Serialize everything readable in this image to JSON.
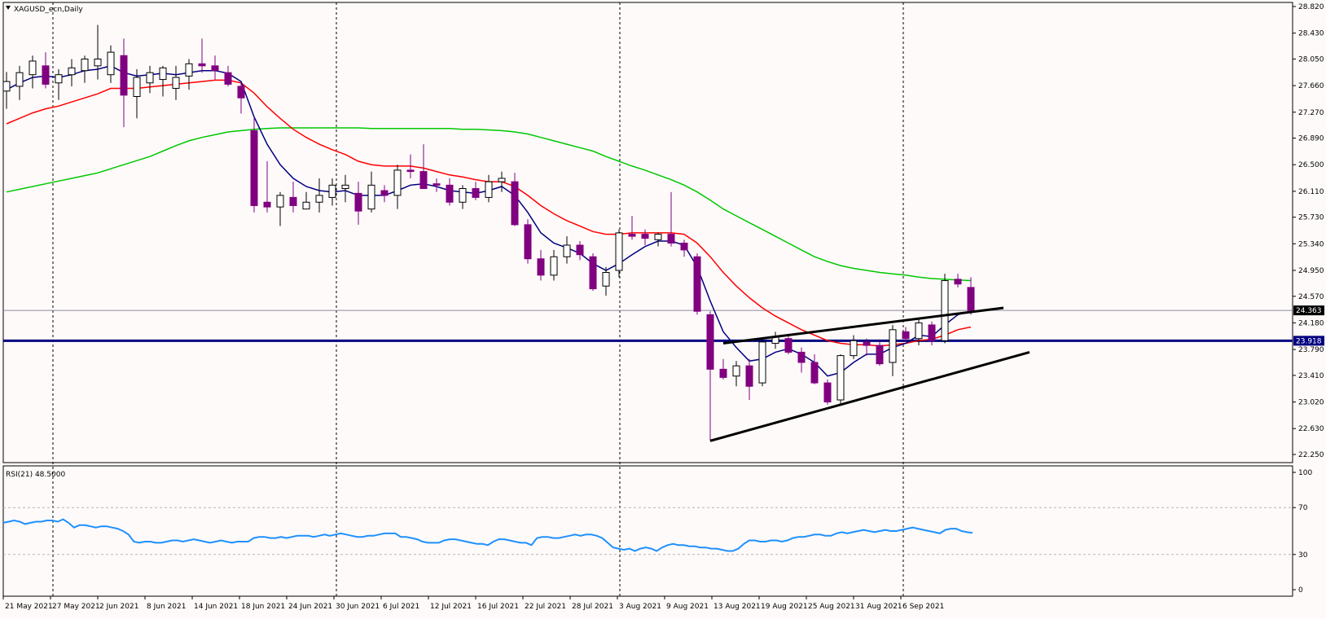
{
  "header": {
    "symbol_label": "XAGUSD_ecn,Daily"
  },
  "colors": {
    "background": "#fffafa",
    "bull_body": "#ffffff",
    "bear_body": "#800080",
    "candle_outline": "#000000",
    "ma_fast": "#000080",
    "ma_mid": "#ff0000",
    "ma_slow": "#00c800",
    "support_line": "#000080",
    "rsi_line": "#1e90ff",
    "trendline": "#000000",
    "price_tag_bg": "#000000",
    "price_tag_text": "#ffffff"
  },
  "chart_data": [
    {
      "type": "candlestick",
      "title": "XAGUSD_ecn,Daily",
      "y_ticks": [
        "28.820",
        "28.430",
        "28.050",
        "27.660",
        "27.270",
        "26.890",
        "26.500",
        "26.110",
        "25.730",
        "25.340",
        "24.950",
        "24.570",
        "24.180",
        "23.790",
        "23.410",
        "23.020",
        "22.630",
        "22.250"
      ],
      "ylim": [
        22.25,
        28.82
      ],
      "x_labels": [
        "21 May 2021",
        "27 May 2021",
        "2 Jun 2021",
        "8 Jun 2021",
        "14 Jun 2021",
        "18 Jun 2021",
        "24 Jun 2021",
        "30 Jun 2021",
        "6 Jul 2021",
        "12 Jul 2021",
        "16 Jul 2021",
        "22 Jul 2021",
        "28 Jul 2021",
        "3 Aug 2021",
        "9 Aug 2021",
        "13 Aug 2021",
        "19 Aug 2021",
        "25 Aug 2021",
        "31 Aug 2021",
        "6 Sep 2021"
      ],
      "candles": [
        {
          "o": 27.58,
          "h": 27.86,
          "l": 27.32,
          "c": 27.72
        },
        {
          "o": 27.65,
          "h": 27.95,
          "l": 27.45,
          "c": 27.85
        },
        {
          "o": 27.82,
          "h": 28.1,
          "l": 27.62,
          "c": 28.02
        },
        {
          "o": 27.95,
          "h": 28.15,
          "l": 27.62,
          "c": 27.68
        },
        {
          "o": 27.7,
          "h": 27.9,
          "l": 27.45,
          "c": 27.82
        },
        {
          "o": 27.82,
          "h": 28.05,
          "l": 27.65,
          "c": 27.92
        },
        {
          "o": 27.88,
          "h": 28.1,
          "l": 27.7,
          "c": 28.05
        },
        {
          "o": 27.95,
          "h": 28.55,
          "l": 27.75,
          "c": 28.05
        },
        {
          "o": 27.82,
          "h": 28.25,
          "l": 27.7,
          "c": 28.15
        },
        {
          "o": 28.1,
          "h": 28.35,
          "l": 27.05,
          "c": 27.52
        },
        {
          "o": 27.5,
          "h": 27.9,
          "l": 27.18,
          "c": 27.78
        },
        {
          "o": 27.7,
          "h": 27.95,
          "l": 27.55,
          "c": 27.85
        },
        {
          "o": 27.75,
          "h": 27.95,
          "l": 27.5,
          "c": 27.92
        },
        {
          "o": 27.62,
          "h": 27.95,
          "l": 27.45,
          "c": 27.78
        },
        {
          "o": 27.8,
          "h": 28.05,
          "l": 27.6,
          "c": 27.98
        },
        {
          "o": 27.98,
          "h": 28.35,
          "l": 27.85,
          "c": 27.95
        },
        {
          "o": 27.95,
          "h": 28.1,
          "l": 27.75,
          "c": 27.88
        },
        {
          "o": 27.85,
          "h": 27.95,
          "l": 27.65,
          "c": 27.68
        },
        {
          "o": 27.65,
          "h": 27.7,
          "l": 27.25,
          "c": 27.48
        },
        {
          "o": 27.0,
          "h": 27.18,
          "l": 25.8,
          "c": 25.9
        },
        {
          "o": 25.95,
          "h": 26.55,
          "l": 25.8,
          "c": 25.88
        },
        {
          "o": 25.88,
          "h": 26.1,
          "l": 25.6,
          "c": 26.05
        },
        {
          "o": 26.02,
          "h": 26.25,
          "l": 25.8,
          "c": 25.9
        },
        {
          "o": 25.85,
          "h": 26.1,
          "l": 25.85,
          "c": 25.95
        },
        {
          "o": 25.95,
          "h": 26.3,
          "l": 25.8,
          "c": 26.05
        },
        {
          "o": 26.02,
          "h": 26.3,
          "l": 25.9,
          "c": 26.2
        },
        {
          "o": 26.15,
          "h": 26.35,
          "l": 25.95,
          "c": 26.2
        },
        {
          "o": 26.08,
          "h": 26.25,
          "l": 25.62,
          "c": 25.82
        },
        {
          "o": 25.85,
          "h": 26.4,
          "l": 25.8,
          "c": 26.2
        },
        {
          "o": 26.12,
          "h": 26.2,
          "l": 25.95,
          "c": 26.05
        },
        {
          "o": 26.05,
          "h": 26.5,
          "l": 25.85,
          "c": 26.42
        },
        {
          "o": 26.42,
          "h": 26.65,
          "l": 26.3,
          "c": 26.4
        },
        {
          "o": 26.4,
          "h": 26.8,
          "l": 26.15,
          "c": 26.15
        },
        {
          "o": 26.22,
          "h": 26.3,
          "l": 26.1,
          "c": 26.2
        },
        {
          "o": 26.2,
          "h": 26.3,
          "l": 25.9,
          "c": 25.95
        },
        {
          "o": 25.95,
          "h": 26.2,
          "l": 25.85,
          "c": 26.15
        },
        {
          "o": 26.15,
          "h": 26.25,
          "l": 25.98,
          "c": 26.02
        },
        {
          "o": 26.02,
          "h": 26.35,
          "l": 25.95,
          "c": 26.25
        },
        {
          "o": 26.25,
          "h": 26.4,
          "l": 26.1,
          "c": 26.3
        },
        {
          "o": 26.25,
          "h": 26.38,
          "l": 25.6,
          "c": 25.62
        },
        {
          "o": 25.62,
          "h": 25.7,
          "l": 25.05,
          "c": 25.12
        },
        {
          "o": 25.12,
          "h": 25.25,
          "l": 24.8,
          "c": 24.88
        },
        {
          "o": 24.88,
          "h": 25.25,
          "l": 24.8,
          "c": 25.15
        },
        {
          "o": 25.15,
          "h": 25.45,
          "l": 25.05,
          "c": 25.32
        },
        {
          "o": 25.32,
          "h": 25.38,
          "l": 25.1,
          "c": 25.18
        },
        {
          "o": 25.15,
          "h": 25.2,
          "l": 24.65,
          "c": 24.68
        },
        {
          "o": 24.72,
          "h": 25.0,
          "l": 24.58,
          "c": 24.92
        },
        {
          "o": 24.95,
          "h": 25.55,
          "l": 24.85,
          "c": 25.5
        },
        {
          "o": 25.48,
          "h": 25.75,
          "l": 25.4,
          "c": 25.45
        },
        {
          "o": 25.48,
          "h": 25.55,
          "l": 25.32,
          "c": 25.42
        },
        {
          "o": 25.4,
          "h": 25.5,
          "l": 25.3,
          "c": 25.48
        },
        {
          "o": 25.48,
          "h": 26.1,
          "l": 25.3,
          "c": 25.35
        },
        {
          "o": 25.35,
          "h": 25.4,
          "l": 25.15,
          "c": 25.25
        },
        {
          "o": 25.15,
          "h": 25.2,
          "l": 24.3,
          "c": 24.35
        },
        {
          "o": 24.3,
          "h": 24.35,
          "l": 22.45,
          "c": 23.5
        },
        {
          "o": 23.5,
          "h": 23.65,
          "l": 23.35,
          "c": 23.38
        },
        {
          "o": 23.4,
          "h": 23.62,
          "l": 23.25,
          "c": 23.55
        },
        {
          "o": 23.55,
          "h": 23.65,
          "l": 23.05,
          "c": 23.25
        },
        {
          "o": 23.3,
          "h": 23.95,
          "l": 23.25,
          "c": 23.9
        },
        {
          "o": 23.88,
          "h": 24.05,
          "l": 23.8,
          "c": 23.98
        },
        {
          "o": 23.95,
          "h": 24.02,
          "l": 23.72,
          "c": 23.75
        },
        {
          "o": 23.75,
          "h": 23.82,
          "l": 23.45,
          "c": 23.6
        },
        {
          "o": 23.6,
          "h": 23.72,
          "l": 23.28,
          "c": 23.3
        },
        {
          "o": 23.3,
          "h": 23.35,
          "l": 22.98,
          "c": 23.02
        },
        {
          "o": 23.05,
          "h": 23.72,
          "l": 23.0,
          "c": 23.7
        },
        {
          "o": 23.7,
          "h": 24.0,
          "l": 23.65,
          "c": 23.92
        },
        {
          "o": 23.9,
          "h": 23.95,
          "l": 23.7,
          "c": 23.85
        },
        {
          "o": 23.85,
          "h": 23.92,
          "l": 23.55,
          "c": 23.58
        },
        {
          "o": 23.6,
          "h": 24.15,
          "l": 23.4,
          "c": 24.08
        },
        {
          "o": 24.05,
          "h": 24.12,
          "l": 23.9,
          "c": 23.95
        },
        {
          "o": 23.95,
          "h": 24.25,
          "l": 23.85,
          "c": 24.18
        },
        {
          "o": 24.15,
          "h": 24.2,
          "l": 23.85,
          "c": 23.92
        },
        {
          "o": 23.92,
          "h": 24.9,
          "l": 23.88,
          "c": 24.8
        },
        {
          "o": 24.82,
          "h": 24.9,
          "l": 24.7,
          "c": 24.75
        },
        {
          "o": 24.7,
          "h": 24.85,
          "l": 24.3,
          "c": 24.36
        }
      ],
      "ma_fast": [
        27.6,
        27.7,
        27.78,
        27.8,
        27.78,
        27.82,
        27.88,
        27.9,
        27.95,
        27.85,
        27.8,
        27.82,
        27.84,
        27.82,
        27.85,
        27.88,
        27.88,
        27.84,
        27.72,
        27.2,
        26.8,
        26.5,
        26.3,
        26.18,
        26.12,
        26.1,
        26.12,
        26.05,
        26.05,
        26.05,
        26.12,
        26.2,
        26.22,
        26.18,
        26.12,
        26.1,
        26.08,
        26.12,
        26.18,
        26.05,
        25.8,
        25.5,
        25.35,
        25.28,
        25.2,
        25.05,
        24.95,
        25.05,
        25.18,
        25.3,
        25.38,
        25.38,
        25.32,
        25.0,
        24.5,
        24.05,
        23.82,
        23.62,
        23.65,
        23.75,
        23.8,
        23.72,
        23.6,
        23.4,
        23.45,
        23.6,
        23.72,
        23.72,
        23.82,
        23.88,
        24.0,
        23.98,
        24.15,
        24.3,
        24.35
      ],
      "ma_mid": [
        27.1,
        27.18,
        27.26,
        27.32,
        27.36,
        27.42,
        27.48,
        27.54,
        27.62,
        27.62,
        27.62,
        27.64,
        27.66,
        27.68,
        27.7,
        27.72,
        27.74,
        27.74,
        27.7,
        27.55,
        27.35,
        27.18,
        27.02,
        26.9,
        26.8,
        26.72,
        26.65,
        26.55,
        26.5,
        26.48,
        26.48,
        26.48,
        26.45,
        26.4,
        26.35,
        26.32,
        26.28,
        26.25,
        26.25,
        26.18,
        26.05,
        25.9,
        25.78,
        25.68,
        25.6,
        25.52,
        25.48,
        25.48,
        25.5,
        25.5,
        25.5,
        25.5,
        25.48,
        25.35,
        25.15,
        24.92,
        24.72,
        24.55,
        24.4,
        24.28,
        24.18,
        24.08,
        24.0,
        23.92,
        23.88,
        23.86,
        23.86,
        23.84,
        23.86,
        23.88,
        23.92,
        23.94,
        24.0,
        24.08,
        24.12
      ],
      "ma_slow": [
        26.1,
        26.14,
        26.18,
        26.22,
        26.26,
        26.3,
        26.34,
        26.38,
        26.44,
        26.5,
        26.56,
        26.62,
        26.7,
        26.78,
        26.85,
        26.9,
        26.94,
        26.98,
        27.0,
        27.02,
        27.03,
        27.04,
        27.04,
        27.04,
        27.04,
        27.04,
        27.04,
        27.04,
        27.03,
        27.03,
        27.03,
        27.03,
        27.03,
        27.03,
        27.03,
        27.02,
        27.02,
        27.01,
        27.0,
        26.98,
        26.95,
        26.9,
        26.85,
        26.8,
        26.75,
        26.7,
        26.62,
        26.55,
        26.48,
        26.42,
        26.35,
        26.28,
        26.2,
        26.1,
        25.98,
        25.85,
        25.75,
        25.65,
        25.55,
        25.45,
        25.35,
        25.25,
        25.15,
        25.08,
        25.02,
        24.98,
        24.95,
        24.92,
        24.9,
        24.88,
        24.85,
        24.83,
        24.82,
        24.81,
        24.8
      ],
      "horizontal_levels": [
        {
          "value": 23.918,
          "label": "23.918",
          "role": "support"
        },
        {
          "value": 24.363,
          "label": "24.363",
          "role": "current"
        }
      ],
      "trendlines": [
        {
          "x1": 54,
          "y1": 22.45,
          "x2": 78.5,
          "y2": 23.75
        },
        {
          "x1": 55,
          "y1": 23.88,
          "x2": 76.5,
          "y2": 24.4
        }
      ],
      "vertical_separators_at_label_index": [
        1,
        7,
        13,
        19
      ]
    },
    {
      "type": "line",
      "title": "RSI(21) 48.5000",
      "ylim": [
        0,
        100
      ],
      "y_ticks": [
        "100",
        "70",
        "30",
        "0"
      ],
      "levels": [
        70,
        30
      ],
      "values": [
        57,
        58,
        59,
        58,
        56,
        57,
        58,
        58,
        59,
        59,
        58,
        60,
        57,
        53,
        55,
        55,
        54,
        53,
        54,
        54,
        53,
        52,
        50,
        47,
        41,
        40,
        41,
        41,
        40,
        40,
        41,
        42,
        42,
        41,
        42,
        43,
        42,
        41,
        40,
        41,
        42,
        41,
        40,
        41,
        41,
        41,
        44,
        45,
        45,
        44,
        44,
        45,
        44,
        45,
        46,
        46,
        46,
        45,
        46,
        47,
        46,
        47,
        48,
        47,
        46,
        45,
        45,
        46,
        46,
        47,
        48,
        48,
        48,
        45,
        45,
        44,
        43,
        41,
        40,
        40,
        40,
        42,
        43,
        43,
        42,
        41,
        40,
        39,
        39,
        38,
        41,
        43,
        43,
        42,
        41,
        40,
        40,
        38,
        44,
        45,
        45,
        44,
        44,
        45,
        46,
        47,
        46,
        47,
        47,
        46,
        44,
        40,
        36,
        35,
        34,
        35,
        33,
        35,
        36,
        35,
        33,
        36,
        38,
        39,
        38,
        38,
        37,
        37,
        36,
        36,
        35,
        35,
        34,
        33,
        33,
        35,
        39,
        42,
        42,
        41,
        41,
        42,
        42,
        41,
        42,
        44,
        45,
        45,
        46,
        47,
        47,
        46,
        46,
        48,
        49,
        48,
        49,
        50,
        51,
        50,
        49,
        50,
        51,
        50,
        50,
        51,
        52,
        53,
        52,
        51,
        50,
        49,
        48,
        51,
        52,
        52,
        50,
        49,
        48.5
      ]
    }
  ]
}
